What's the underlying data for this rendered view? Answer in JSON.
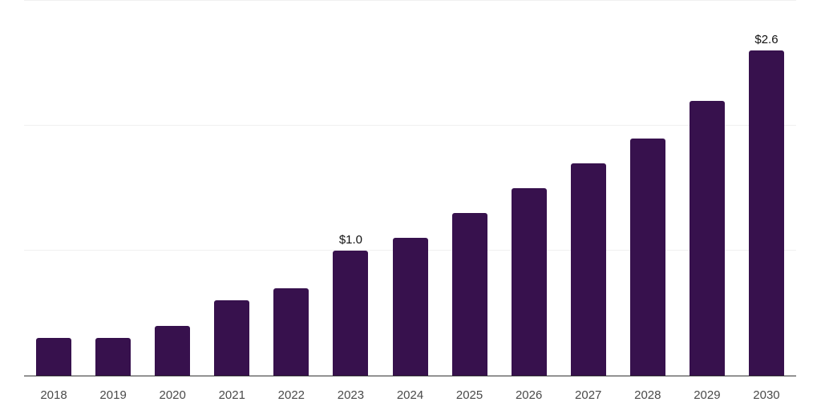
{
  "chart_data": {
    "type": "bar",
    "categories": [
      "2018",
      "2019",
      "2020",
      "2021",
      "2022",
      "2023",
      "2024",
      "2025",
      "2026",
      "2027",
      "2028",
      "2029",
      "2030"
    ],
    "values": [
      0.3,
      0.3,
      0.4,
      0.6,
      0.7,
      1.0,
      1.1,
      1.3,
      1.5,
      1.7,
      1.9,
      2.2,
      2.6
    ],
    "value_labels": [
      "",
      "",
      "",
      "",
      "",
      "$1.0",
      "",
      "",
      "",
      "",
      "",
      "",
      "$2.6"
    ],
    "value_prefix": "$",
    "title": "",
    "xlabel": "",
    "ylabel": "",
    "ylim": [
      0,
      3.0
    ],
    "gridline_values": [
      1.0,
      2.0,
      3.0
    ],
    "grid": "horizontal",
    "legend": "none",
    "colors": {
      "bar": "#37114d",
      "grid": "#f0f0f0",
      "axis": "#333333",
      "tick_label": "#4a4a4a",
      "data_label": "#111111",
      "background": "#ffffff"
    }
  }
}
